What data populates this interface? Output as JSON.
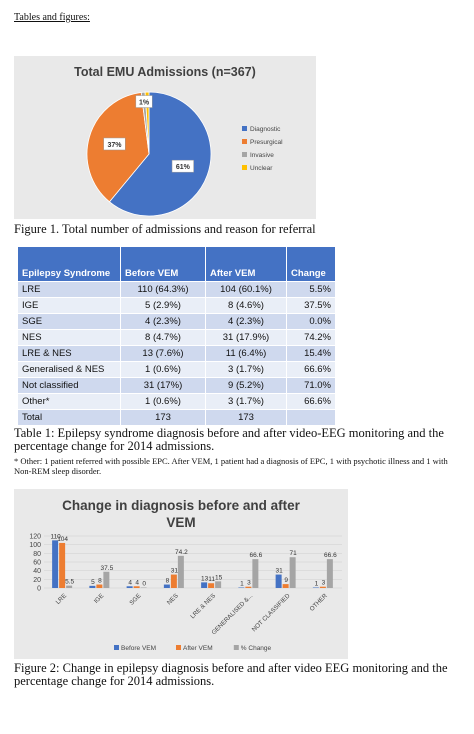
{
  "heading": "Tables and figures:",
  "figure1": {
    "caption": "Figure 1. Total number of admissions and reason for referral",
    "chart_data": {
      "type": "pie",
      "title": "Total EMU Admissions (n=367)",
      "labels": [
        "Diagnostic",
        "Presurgical",
        "Invasive",
        "Unclear"
      ],
      "values": [
        61,
        37,
        1,
        1
      ],
      "data_labels": [
        "61%",
        "37%",
        "1%",
        ""
      ],
      "colors": [
        "#4472c4",
        "#ed7d31",
        "#a5a5a5",
        "#ffc000"
      ],
      "legend_position": "right"
    }
  },
  "table1": {
    "headers": [
      "Epilepsy Syndrome",
      "Before VEM",
      "After VEM",
      "Change"
    ],
    "rows": [
      [
        "LRE",
        "110 (64.3%)",
        "104 (60.1%)",
        "5.5%"
      ],
      [
        "IGE",
        "5 (2.9%)",
        "8 (4.6%)",
        "37.5%"
      ],
      [
        "SGE",
        "4 (2.3%)",
        "4 (2.3%)",
        "0.0%"
      ],
      [
        "NES",
        "8 (4.7%)",
        "31 (17.9%)",
        "74.2%"
      ],
      [
        "LRE & NES",
        "13 (7.6%)",
        "11 (6.4%)",
        "15.4%"
      ],
      [
        "Generalised & NES",
        "1 (0.6%)",
        "3 (1.7%)",
        "66.6%"
      ],
      [
        "Not classified",
        "31 (17%)",
        "9 (5.2%)",
        "71.0%"
      ],
      [
        "Other*",
        "1 (0.6%)",
        "3 (1.7%)",
        "66.6%"
      ],
      [
        "Total",
        "173",
        "173",
        ""
      ]
    ],
    "caption": "Table 1: Epilepsy syndrome diagnosis before and after video-EEG monitoring and the percentage change for 2014 admissions.",
    "footnote": "* Other: 1 patient referred with possible EPC. After VEM, 1 patient had a diagnosis of EPC, 1 with psychotic illness and 1 with Non-REM sleep disorder."
  },
  "figure2": {
    "caption": "Figure 2: Change in epilepsy diagnosis before and after video EEG monitoring and the percentage change for 2014 admissions.",
    "chart_data": {
      "type": "bar",
      "title": "Change in diagnosis before and after VEM",
      "title_lines": [
        "Change in diagnosis before and after",
        "VEM"
      ],
      "categories": [
        "LRE",
        "IGE",
        "SGE",
        "NES",
        "LRE & NES",
        "GENERALISED &...",
        "NOT CLASSIFIED",
        "OTHER"
      ],
      "series": [
        {
          "name": "Before VEM",
          "values": [
            110,
            5,
            4,
            8,
            13,
            1,
            31,
            1
          ],
          "color": "#4472c4"
        },
        {
          "name": "After VEM",
          "values": [
            104,
            8,
            4,
            31,
            11,
            3,
            9,
            3
          ],
          "color": "#ed7d31"
        },
        {
          "name": "% Change",
          "values": [
            5.5,
            37.5,
            0,
            74.2,
            15.4,
            66.6,
            71,
            66.6
          ],
          "color": "#a5a5a5"
        }
      ],
      "data_labels": [
        [
          "110",
          "5",
          "4",
          "8",
          "13",
          "1",
          "31",
          "1"
        ],
        [
          "104",
          "8",
          "4",
          "31",
          "11",
          "3",
          "9",
          "3"
        ],
        [
          "5.5",
          "37.5",
          "0",
          "74.2",
          "15",
          "66.6",
          "71",
          "66.6"
        ]
      ],
      "y_ticks": [
        "0",
        "20",
        "40",
        "60",
        "80",
        "100",
        "120"
      ],
      "ylim": [
        0,
        120
      ],
      "legend_position": "bottom"
    }
  }
}
